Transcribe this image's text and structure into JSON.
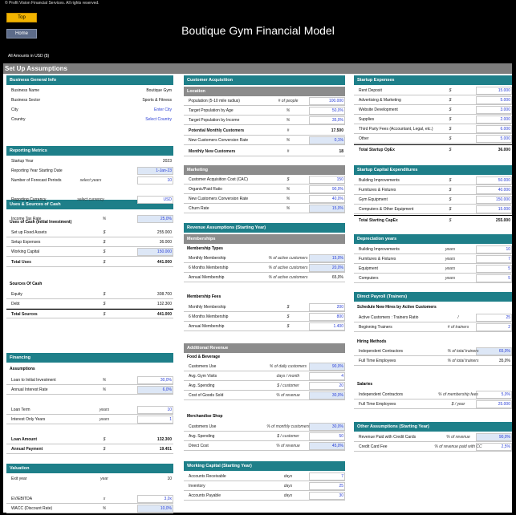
{
  "header": {
    "copyright": "© Profit Vision Financial Services. All rights reserved.",
    "top_button": "Top",
    "home_button": "Home",
    "title": "Boutique Gym Financial Model",
    "amounts_in": "All Amounts in   USD ($)"
  },
  "banner": "Set Up Assumptions",
  "business": {
    "title": "Business General Info",
    "rows": [
      {
        "label": "Business Name",
        "value": "Boutique Gym"
      },
      {
        "label": "Business Sector",
        "value": "Sports & Fitness"
      },
      {
        "label": "City",
        "value": "Enter City"
      },
      {
        "label": "Country",
        "value": "Select Country"
      }
    ]
  },
  "reporting": {
    "title": "Reporting Metrics",
    "rows": [
      {
        "label": "Startup Year",
        "unit": "",
        "value": "2023"
      },
      {
        "label": "Reporting Year Starting Date",
        "unit": "",
        "value": "1-Jan-23"
      },
      {
        "label": "Number of Forecast Periods",
        "unit": "select years",
        "value": "10"
      },
      {
        "label": "Reporting Currency",
        "unit": "select currency",
        "value": "USD"
      },
      {
        "label": "Income Tax Rate",
        "unit": "%",
        "value": "25,0%"
      }
    ]
  },
  "uses_sources": {
    "title": "Uses & Sources of Cash",
    "uses_title": "Uses of Cash (Initial Investment)",
    "uses": [
      {
        "label": "Set up Fixed Assets",
        "unit": "$",
        "value": "255.000"
      },
      {
        "label": "Setup Expenses",
        "unit": "$",
        "value": "36.000"
      },
      {
        "label": "Working Capital",
        "unit": "$",
        "value": "150.000"
      }
    ],
    "total_uses": {
      "label": "Total Uses",
      "unit": "$",
      "value": "441.000"
    },
    "sources_title": "Sources Of Cash",
    "sources": [
      {
        "label": "Equity",
        "unit": "$",
        "value": "308.700"
      },
      {
        "label": "Debt",
        "unit": "$",
        "value": "132.300"
      }
    ],
    "total_sources": {
      "label": "Total Sources",
      "unit": "$",
      "value": "441.000"
    }
  },
  "financing": {
    "title": "Financing",
    "assumptions_title": "Assumptions",
    "rows": [
      {
        "label": "Loan to Initial Investment",
        "unit": "%",
        "value": "30,0%"
      },
      {
        "label": "Annual Interest Rate",
        "unit": "%",
        "value": "6,0%"
      },
      {
        "label": "Loan Term",
        "unit": "years",
        "value": "10"
      },
      {
        "label": "Interest Only Years",
        "unit": "years",
        "value": "1"
      },
      {
        "label": "Loan Amount",
        "unit": "$",
        "value": "132.300"
      },
      {
        "label": "Annual Payment",
        "unit": "$",
        "value": "19.451"
      }
    ]
  },
  "valuation": {
    "title": "Valuation",
    "rows": [
      {
        "label": "Exit year",
        "unit": "year",
        "value": "10"
      },
      {
        "label": "EV/EBITDA",
        "unit": "x",
        "value": "3,0x"
      },
      {
        "label": "WACC (Discount Rate)",
        "unit": "%",
        "value": "10,0%"
      }
    ]
  },
  "customer_acq": {
    "title": "Customer Acquisition",
    "location_title": "Location",
    "location": [
      {
        "label": "Population (5-10 mile radius)",
        "unit": "# of people",
        "value": "100.000"
      },
      {
        "label": "Target Population by Age",
        "unit": "%",
        "value": "50,0%"
      },
      {
        "label": "Target Population by Income",
        "unit": "%",
        "value": "35,0%"
      },
      {
        "label": "Potential Monthly Customers",
        "unit": "#",
        "value": "17.500"
      },
      {
        "label": "New Customers Conversion Rate",
        "unit": "%",
        "value": "0,1%"
      },
      {
        "label": "Monthly New Customers",
        "unit": "#",
        "value": "18"
      }
    ],
    "marketing_title": "Marketing",
    "marketing": [
      {
        "label": "Customer Acquisition Cost (CAC)",
        "unit": "$",
        "value": "150"
      },
      {
        "label": "Organic/Paid Ratio",
        "unit": "%",
        "value": "90,0%"
      },
      {
        "label": "New Customers Conversion Rate",
        "unit": "%",
        "value": "40,0%"
      },
      {
        "label": "Churn Rate",
        "unit": "%",
        "value": "15,0%"
      }
    ]
  },
  "revenue": {
    "title": "Revenue Assumptions (Starting Year)",
    "memberships_title": "Memberships",
    "types_title": "Membership Types",
    "types": [
      {
        "label": "Monthly Membership",
        "unit": "% of active customers",
        "value": "15,0%"
      },
      {
        "label": "6 Months Membership",
        "unit": "% of active customers",
        "value": "20,0%"
      },
      {
        "label": "Annual Membership",
        "unit": "% of active customers",
        "value": "65,0%"
      }
    ],
    "fees_title": "Membership Fees",
    "fees": [
      {
        "label": "Monthly Membership",
        "unit": "$",
        "value": "200"
      },
      {
        "label": "6 Months Membership",
        "unit": "$",
        "value": "800"
      },
      {
        "label": "Annual Membership",
        "unit": "$",
        "value": "1.400"
      }
    ],
    "additional_title": "Additional Revenue",
    "food_title": "Food & Beverage",
    "food": [
      {
        "label": "Customers Use",
        "unit": "% of daily customers",
        "value": "90,0%"
      },
      {
        "label": "Avg. Gym Visits",
        "unit": "days / month",
        "value": "4"
      },
      {
        "label": "Avg. Spending",
        "unit": "$ / customer",
        "value": "20"
      },
      {
        "label": "Cost of Goods Sold",
        "unit": "% of revenue",
        "value": "30,0%"
      }
    ],
    "merch_title": "Merchandise Shop",
    "merch": [
      {
        "label": "Customers Use",
        "unit": "% of monthly customers",
        "value": "30,0%"
      },
      {
        "label": "Avg. Spending",
        "unit": "$ / customer",
        "value": "50"
      },
      {
        "label": "Direct Cost",
        "unit": "% of revenue",
        "value": "45,0%"
      }
    ]
  },
  "working_capital": {
    "title": "Working Capital (Starting Year)",
    "rows": [
      {
        "label": "Accounts Receivable",
        "unit": "days",
        "value": "7"
      },
      {
        "label": "Inventory",
        "unit": "days",
        "value": "25"
      },
      {
        "label": "Accounts Payable",
        "unit": "days",
        "value": "30"
      }
    ]
  },
  "startup_expenses": {
    "title": "Startup Expenses",
    "rows": [
      {
        "label": "Rent Deposit",
        "unit": "$",
        "value": "15.000"
      },
      {
        "label": "Advertising & Marketing",
        "unit": "$",
        "value": "5.000"
      },
      {
        "label": "Website Development",
        "unit": "$",
        "value": "3.000"
      },
      {
        "label": "Supplies",
        "unit": "$",
        "value": "2.000"
      },
      {
        "label": "Third Party Fees (Accountant, Legal, etc.)",
        "unit": "$",
        "value": "6.000"
      },
      {
        "label": "Other",
        "unit": "$",
        "value": "5.000"
      }
    ],
    "total": {
      "label": "Total Startup OpEx",
      "unit": "$",
      "value": "36.000"
    }
  },
  "capex": {
    "title": "Startup Capital Expenditures",
    "rows": [
      {
        "label": "Building Improvements",
        "unit": "$",
        "value": "50.000"
      },
      {
        "label": "Furnitures & Fixtures",
        "unit": "$",
        "value": "40.000"
      },
      {
        "label": "Gym Equipment",
        "unit": "$",
        "value": "150.000"
      },
      {
        "label": "Computers & Other Equipment",
        "unit": "$",
        "value": "15.000"
      }
    ],
    "total": {
      "label": "Total Starting CapEx",
      "unit": "$",
      "value": "255.000"
    }
  },
  "depreciation": {
    "title": "Depreciation years",
    "rows": [
      {
        "label": "Building Improvements",
        "unit": "years",
        "value": "10"
      },
      {
        "label": "Furnitures & Fixtures",
        "unit": "years",
        "value": "7"
      },
      {
        "label": "Equipment",
        "unit": "years",
        "value": "5"
      },
      {
        "label": "Computers",
        "unit": "years",
        "value": "5"
      }
    ]
  },
  "payroll": {
    "title": "Direct Payroll (Trainers)",
    "schedule_title": "Schedule New Hires by Active Customers",
    "schedule": [
      {
        "label": "Active Customers : Trainers Ratio",
        "unit": "/",
        "value": "25"
      },
      {
        "label": "Beginning Trainers",
        "unit": "# of trainers",
        "value": "2"
      }
    ],
    "hiring_title": "Hiring Methods",
    "hiring": [
      {
        "label": "Independent Contractors",
        "unit": "% of total trainers",
        "value": "65,0%"
      },
      {
        "label": "Full Time Employees",
        "unit": "% of total trainers",
        "value": "35,0%"
      }
    ],
    "salaries_title": "Salaries",
    "salaries": [
      {
        "label": "Independent Contractors",
        "unit": "% of membership fees",
        "value": "5,0%"
      },
      {
        "label": "Full Time Employees",
        "unit": "$ / year",
        "value": "25.000"
      }
    ]
  },
  "other": {
    "title": "Other Assumptions (Starting Year)",
    "rows": [
      {
        "label": "Revenue Paid with Credit Cards",
        "unit": "% of revenue",
        "value": "90,0%"
      },
      {
        "label": "Credit Card Fee",
        "unit": "% of revenue paid with CC",
        "value": "2,5%"
      }
    ]
  }
}
